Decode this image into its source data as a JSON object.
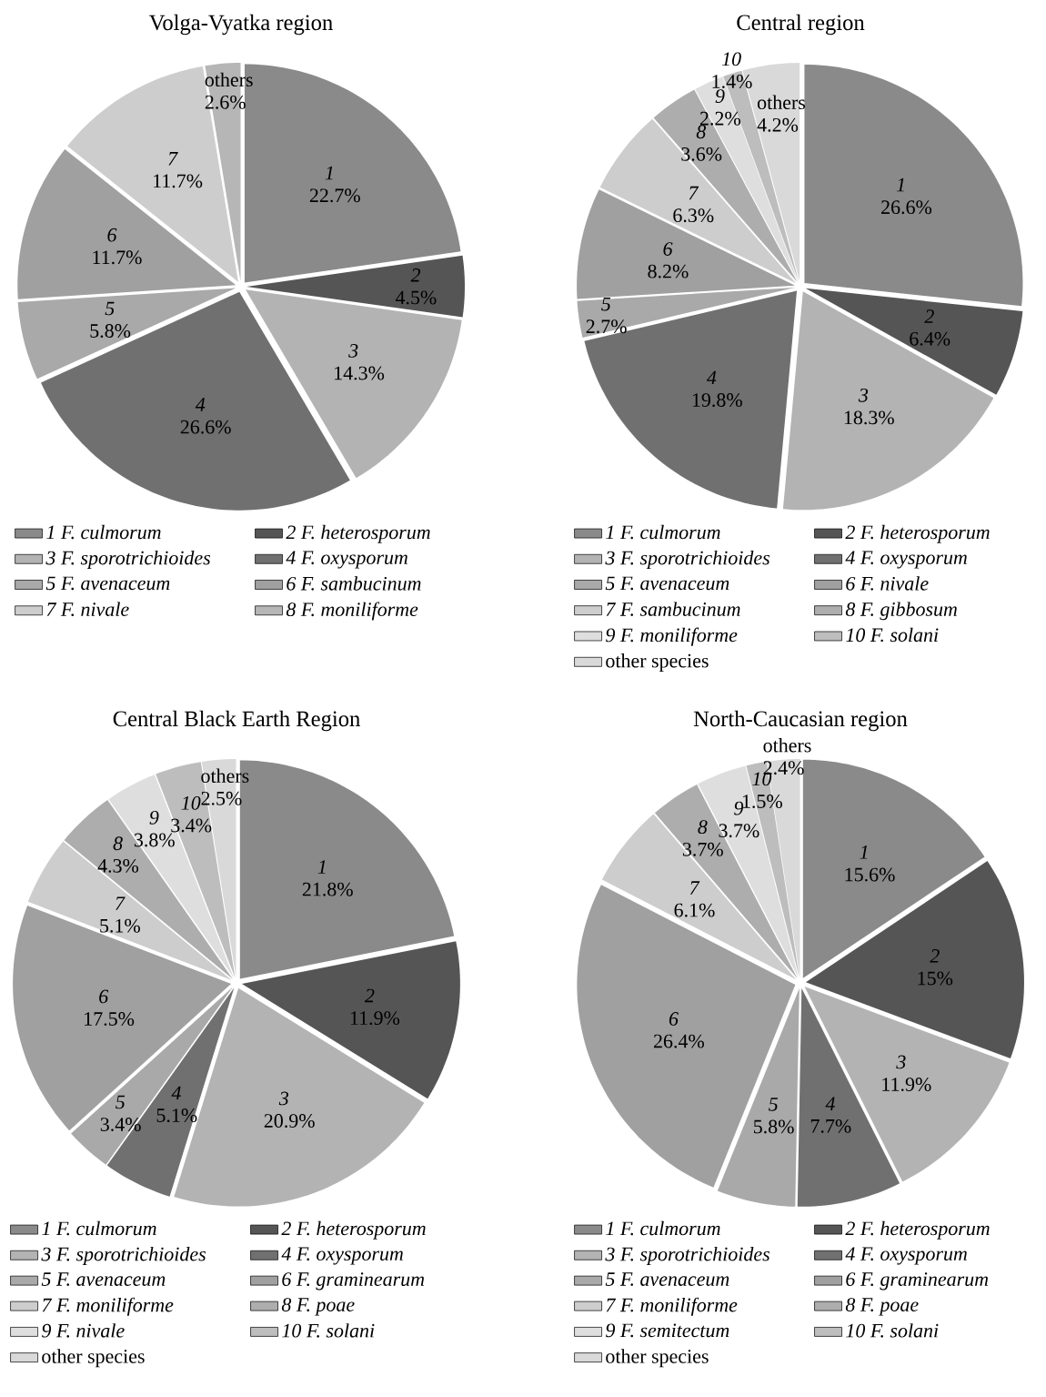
{
  "chart_data": [
    {
      "type": "pie",
      "title": "Volga-Vyatka region",
      "legend": "bottom",
      "categories": [
        "*1 F. culmorum*",
        "*2 F. heterosporum*",
        "*3 F. sporotrichioides*",
        "*4 F. oxysporum*",
        "*5 F. avenaceum*",
        "*6 F. sambucinum*",
        "*7 F. nivale*",
        "*8 F. moniliforme*"
      ],
      "values": [
        22.7,
        4.5,
        14.3,
        26.6,
        5.8,
        11.7,
        11.7,
        2.6
      ],
      "colors": [
        "#8a8a8a",
        "#555555",
        "#b3b3b3",
        "#707070",
        "#a9a9a9",
        "#a0a0a0",
        "#cdcdcd",
        "#b6b6b6"
      ],
      "value_labels": [
        "*1* 22.7%",
        "*2* 4.5%",
        "*3* 14.3%",
        "*4* 26.6%",
        "*5* 5.8%",
        "*6* 11.7%",
        "*7* 11.7%",
        "others 2.6%"
      ]
    },
    {
      "type": "pie",
      "title": "Central region",
      "legend": "bottom",
      "categories": [
        "*1 F. culmorum*",
        "*2 F. heterosporum*",
        "*3 F. sporotrichioides*",
        "*4 F. oxysporum*",
        "*5 F. avenaceum*",
        "*6 F. nivale*",
        "*7 F. sambucinum*",
        "*8 F. gibbosum*",
        "*9 F. moniliforme*",
        "*10 F. solani*",
        "other species"
      ],
      "values": [
        26.6,
        6.4,
        18.3,
        19.8,
        2.7,
        8.2,
        6.3,
        3.6,
        2.2,
        1.4,
        4.2
      ],
      "colors": [
        "#8a8a8a",
        "#555555",
        "#b3b3b3",
        "#707070",
        "#a9a9a9",
        "#a0a0a0",
        "#cdcdcd",
        "#adadad",
        "#dedede",
        "#bdbdbd",
        "#d9d9d9"
      ],
      "value_labels": [
        "*1* 26.6%",
        "*2* 6.4%",
        "*3* 18.3%",
        "*4* 19.8%",
        "*5* 2.7%",
        "*6* 8.2%",
        "*7* 6.3%",
        "*8* 3.6%",
        "*9* 2.2%",
        "*10* 1.4%",
        "others 4.2%"
      ]
    },
    {
      "type": "pie",
      "title": "Central Black Earth Region",
      "legend": "bottom",
      "categories": [
        "*1 F. culmorum*",
        "*2 F. heterosporum*",
        "*3 F. sporotrichioides*",
        "*4 F. oxysporum*",
        "*5 F. avenaceum*",
        "*6 F. graminearum*",
        "*7 F. moniliforme*",
        "*8 F. poae*",
        "*9 F. nivale*",
        "*10 F. solani*",
        "other species"
      ],
      "values": [
        21.8,
        11.9,
        20.9,
        5.1,
        3.4,
        17.5,
        5.1,
        4.3,
        3.8,
        3.4,
        2.5
      ],
      "colors": [
        "#8a8a8a",
        "#555555",
        "#b3b3b3",
        "#707070",
        "#a9a9a9",
        "#a0a0a0",
        "#cdcdcd",
        "#adadad",
        "#dedede",
        "#bdbdbd",
        "#d9d9d9"
      ],
      "value_labels": [
        "*1* 21.8%",
        "*2* 11.9%",
        "*3* 20.9%",
        "*4* 5.1%",
        "*5* 3.4%",
        "*6* 17.5%",
        "*7* 5.1%",
        "*8* 4.3%",
        "*9* 3.8%",
        "*10* 3.4%",
        "others 2.5%"
      ]
    },
    {
      "type": "pie",
      "title": "North-Caucasian region",
      "legend": "bottom",
      "categories": [
        "*1 F. culmorum*",
        "*2 F. heterosporum*",
        "*3 F. sporotrichioides*",
        "*4 F. oxysporum*",
        "*5 F. avenaceum*",
        "*6 F. graminearum*",
        "*7 F. moniliforme*",
        "*8 F. poae*",
        "*9 F. semitectum*",
        "*10 F. solani*",
        "other species"
      ],
      "values": [
        15.6,
        15,
        11.9,
        7.7,
        5.8,
        26.4,
        6.1,
        3.7,
        3.7,
        1.5,
        2.4
      ],
      "colors": [
        "#8a8a8a",
        "#555555",
        "#b3b3b3",
        "#707070",
        "#a9a9a9",
        "#a0a0a0",
        "#cdcdcd",
        "#adadad",
        "#dedede",
        "#bdbdbd",
        "#d9d9d9"
      ],
      "value_labels": [
        "*1* 15.6%",
        "*2* 15%",
        "*3* 11.9%",
        "*4* 7.7%",
        "*5* 5.8%",
        "*6* 26.4%",
        "*7* 6.1%",
        "*8* 3.7%",
        "*9* 3.7%",
        "*10* 1.5%",
        "others 2.4%"
      ]
    }
  ]
}
